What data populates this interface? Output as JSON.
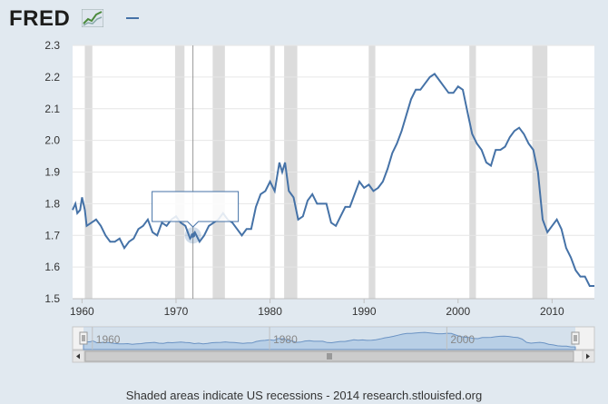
{
  "header": {
    "logo_text": "FRED",
    "legend_series_color": "#4572a7"
  },
  "colors": {
    "background": "#e1e9f0",
    "plot_background": "#ffffff",
    "series": "#4572a7",
    "recession": "#dcdcdc",
    "navigator_fill": "#b8cfe6",
    "navigator_line": "#6b93c4"
  },
  "chart_data": {
    "type": "line",
    "title": "",
    "xlabel": "",
    "ylabel": "",
    "xlim": [
      1959,
      2014.5
    ],
    "ylim": [
      1.5,
      2.3
    ],
    "x_ticks": [
      "1960",
      "1970",
      "1980",
      "1990",
      "2000",
      "2010"
    ],
    "y_ticks": [
      "1.5",
      "1.6",
      "1.7",
      "1.8",
      "1.9",
      "2.0",
      "2.1",
      "2.2",
      "2.3"
    ],
    "grid": true,
    "recessions": [
      [
        1960.3,
        1961.1
      ],
      [
        1969.9,
        1970.9
      ],
      [
        1973.9,
        1975.2
      ],
      [
        1980.0,
        1980.5
      ],
      [
        1981.5,
        1982.9
      ],
      [
        1990.5,
        1991.2
      ],
      [
        2001.2,
        2001.9
      ],
      [
        2007.9,
        2009.5
      ]
    ],
    "series": [
      {
        "x": [
          1959.0,
          1959.3,
          1959.5,
          1959.8,
          1960.0,
          1960.3,
          1960.5,
          1961.0,
          1961.5,
          1962.0,
          1962.5,
          1963.0,
          1963.5,
          1964.0,
          1964.5,
          1965.0,
          1965.5,
          1966.0,
          1966.5,
          1967.0,
          1967.5,
          1968.0,
          1968.5,
          1969.0,
          1969.5,
          1970.0,
          1970.5,
          1971.0,
          1971.5,
          1972.0,
          1972.5,
          1973.0,
          1973.5,
          1974.0,
          1974.5,
          1975.0,
          1975.5,
          1976.0,
          1976.5,
          1977.0,
          1977.5,
          1978.0,
          1978.5,
          1979.0,
          1979.5,
          1980.0,
          1980.5,
          1981.0,
          1981.3,
          1981.6,
          1982.0,
          1982.5,
          1983.0,
          1983.5,
          1984.0,
          1984.5,
          1985.0,
          1985.5,
          1986.0,
          1986.5,
          1987.0,
          1987.5,
          1988.0,
          1988.5,
          1989.0,
          1989.5,
          1990.0,
          1990.5,
          1991.0,
          1991.5,
          1992.0,
          1992.5,
          1993.0,
          1993.5,
          1994.0,
          1994.5,
          1995.0,
          1995.5,
          1996.0,
          1996.5,
          1997.0,
          1997.5,
          1998.0,
          1998.5,
          1999.0,
          1999.5,
          2000.0,
          2000.5,
          2001.0,
          2001.5,
          2002.0,
          2002.5,
          2003.0,
          2003.5,
          2004.0,
          2004.5,
          2005.0,
          2005.5,
          2006.0,
          2006.5,
          2007.0,
          2007.5,
          2008.0,
          2008.5,
          2009.0,
          2009.5,
          2010.0,
          2010.5,
          2011.0,
          2011.5,
          2012.0,
          2012.5,
          2013.0,
          2013.5,
          2014.0,
          2014.5
        ],
        "values": [
          1.78,
          1.8,
          1.77,
          1.78,
          1.82,
          1.78,
          1.73,
          1.74,
          1.75,
          1.73,
          1.7,
          1.68,
          1.68,
          1.69,
          1.66,
          1.68,
          1.69,
          1.72,
          1.73,
          1.75,
          1.71,
          1.7,
          1.74,
          1.73,
          1.75,
          1.76,
          1.74,
          1.73,
          1.69,
          1.71,
          1.68,
          1.7,
          1.73,
          1.74,
          1.75,
          1.77,
          1.75,
          1.74,
          1.72,
          1.7,
          1.72,
          1.72,
          1.79,
          1.83,
          1.84,
          1.87,
          1.84,
          1.93,
          1.9,
          1.93,
          1.84,
          1.82,
          1.75,
          1.76,
          1.81,
          1.83,
          1.8,
          1.8,
          1.8,
          1.74,
          1.73,
          1.76,
          1.79,
          1.79,
          1.83,
          1.87,
          1.85,
          1.86,
          1.84,
          1.85,
          1.87,
          1.91,
          1.96,
          1.99,
          2.03,
          2.08,
          2.13,
          2.16,
          2.16,
          2.18,
          2.2,
          2.21,
          2.19,
          2.17,
          2.15,
          2.15,
          2.17,
          2.16,
          2.09,
          2.02,
          1.99,
          1.97,
          1.93,
          1.92,
          1.97,
          1.97,
          1.98,
          2.01,
          2.03,
          2.04,
          2.02,
          1.99,
          1.97,
          1.9,
          1.75,
          1.71,
          1.73,
          1.75,
          1.72,
          1.66,
          1.63,
          1.59,
          1.57,
          1.57,
          1.54,
          1.54
        ]
      }
    ],
    "tooltip": {
      "x": 1971.8,
      "y": 1.7
    },
    "navigator": {
      "x_ticks": [
        "1960",
        "1980",
        "2000"
      ]
    }
  },
  "footer": {
    "text": "Shaded areas indicate US recessions - 2014 research.stlouisfed.org"
  }
}
